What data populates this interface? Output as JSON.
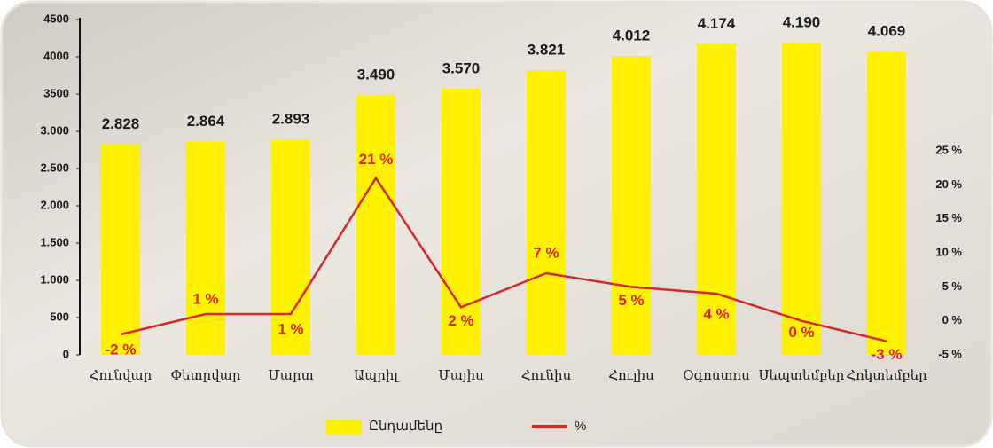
{
  "chart_data": {
    "type": "bar-line",
    "categories": [
      "Հունվար",
      "Փետրվար",
      "Մարտ",
      "Ապրիլ",
      "Մայիս",
      "Հունիս",
      "Հուլիս",
      "Օգոստոս",
      "Սեպտեմբեր",
      "Հոկտեմբեր"
    ],
    "series": [
      {
        "name": "Ընդամենը",
        "color": "#fff200",
        "type": "bar",
        "values": [
          2828,
          2864,
          2893,
          3490,
          3570,
          3821,
          4012,
          4174,
          4190,
          4069
        ],
        "value_labels": [
          "2.828",
          "2.864",
          "2.893",
          "3.490",
          "3.570",
          "3.821",
          "4.012",
          "4.174",
          "4.190",
          "4.069"
        ]
      },
      {
        "name": "%",
        "color": "#d62828",
        "type": "line",
        "axis": "y2",
        "values": [
          -2,
          1,
          1,
          21,
          2,
          7,
          5,
          4,
          0,
          -3
        ],
        "value_labels": [
          "-2 %",
          "1 %",
          "1 %",
          "21 %",
          "2 %",
          "7 %",
          "5 %",
          "4 %",
          "0 %",
          "-3 %"
        ]
      }
    ],
    "ylim": [
      0,
      4500
    ],
    "yticks": [
      0,
      500,
      {
        "value": 1000,
        "label": "1.000"
      },
      {
        "value": 1500,
        "label": "1.500"
      },
      {
        "value": 2000,
        "label": "2.000"
      },
      {
        "value": 2500,
        "label": "2.500"
      },
      {
        "value": 3000,
        "label": "3.000"
      },
      3500,
      4000,
      4500
    ],
    "y2lim": [
      -5,
      44.3
    ],
    "y2ticks": [
      {
        "value": -5,
        "label": "-5 %"
      },
      {
        "value": 0,
        "label": "0 %"
      },
      {
        "value": 5,
        "label": "5 %"
      },
      {
        "value": 10,
        "label": "10 %"
      },
      {
        "value": 15,
        "label": "15 %"
      },
      {
        "value": 20,
        "label": "20 %"
      },
      {
        "value": 25,
        "label": "25 %"
      }
    ],
    "legend": "bottom"
  }
}
